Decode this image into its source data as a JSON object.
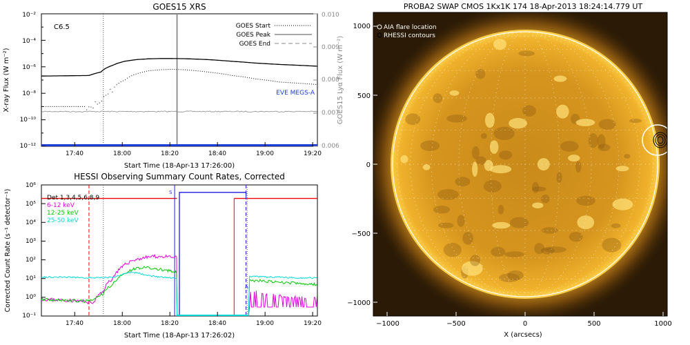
{
  "goes": {
    "title": "GOES15 XRS",
    "class_label": "C6.5",
    "xlabel": "Start Time (18-Apr-13 17:26:00)",
    "ylabel_left": "X-ray Flux (W m⁻²)",
    "ylabel_right": "GOES15 Lyα Flux (W m⁻²)",
    "legend": {
      "start": "GOES Start",
      "peak": "GOES Peak",
      "end": "GOES End"
    },
    "eve_label": "EVE MEGS-A",
    "yticks_left": [
      "10⁻²",
      "10⁻⁴",
      "10⁻⁶",
      "10⁻⁸",
      "10⁻¹⁰",
      "10⁻¹²"
    ],
    "yticks_right": [
      "0.010",
      "0.009",
      "0.008",
      "0.007",
      "0.006"
    ],
    "xticks": [
      "17:40",
      "18:00",
      "18:20",
      "18:40",
      "19:00",
      "19:20"
    ]
  },
  "hessi": {
    "title": "HESSI Observing Summary Count Rates, Corrected",
    "xlabel": "Start Time (18-Apr-13 17:26:02)",
    "ylabel": "Corrected Count Rate (s⁻¹ detector⁻¹)",
    "legend": [
      {
        "label": "Det 1,3,4,5,6,8,9",
        "color": "#000000"
      },
      {
        "label": "6-12 keV",
        "color": "#e000e0"
      },
      {
        "label": "12-25 keV",
        "color": "#00c800"
      },
      {
        "label": "25-50 keV",
        "color": "#00d8d8"
      }
    ],
    "yticks": [
      "10⁶",
      "10⁵",
      "10⁴",
      "10³",
      "10²",
      "10¹",
      "10⁰",
      "10⁻¹"
    ],
    "xticks": [
      "17:40",
      "18:00",
      "18:20",
      "18:40",
      "19:00",
      "19:20"
    ],
    "s_label": "S",
    "a_label": "A"
  },
  "swap": {
    "title": "PROBA2 SWAP CMOS 1Kx1K 174 18-Apr-2013 18:24:14.779 UT",
    "legend_aia": "AIA flare location",
    "legend_rhessi": "RHESSI contours",
    "xlabel": "X (arcsecs)",
    "xticks": [
      "−1000",
      "−500",
      "0",
      "500",
      "1000"
    ],
    "yticks": [
      "1000",
      "500",
      "0",
      "−500",
      "−1000"
    ]
  },
  "chart_data": [
    {
      "type": "line",
      "title": "GOES15 XRS",
      "xlabel": "Start Time (18-Apr-13 17:26:00)",
      "ylabel": "X-ray Flux (W m⁻²)",
      "ylabel_right": "GOES15 Lyα Flux (W m⁻²)",
      "ylog": true,
      "ylim": [
        1e-12,
        0.01
      ],
      "ylim_right": [
        0.006,
        0.01
      ],
      "xlim_minutes": [
        0,
        116
      ],
      "x_minutes_from_1726": [
        0,
        20,
        25,
        30,
        35,
        40,
        45,
        50,
        55,
        60,
        70,
        80,
        90,
        100,
        116
      ],
      "series": [
        {
          "name": "",
          "style": "solid black",
          "values": [
            2e-07,
            2.2e-07,
            4e-07,
            1.3e-06,
            2.6e-06,
            3.5e-06,
            4e-06,
            4.2e-06,
            4.2e-06,
            4.1e-06,
            3.5e-06,
            2.6e-06,
            1.9e-06,
            1.5e-06,
            1.1e-06
          ]
        },
        {
          "name": "",
          "style": "dotted black",
          "values": [
            1e-09,
            1e-09,
            2e-09,
            2e-08,
            1e-07,
            3e-07,
            5e-07,
            6e-07,
            6.5e-07,
            6e-07,
            4e-07,
            2.2e-07,
            1.2e-07,
            7e-08,
            4.5e-08
          ]
        }
      ],
      "events": {
        "start": "17:52",
        "peak": "18:23",
        "end": ""
      },
      "annotations": [
        "C6.5",
        "EVE MEGS-A"
      ]
    },
    {
      "type": "line",
      "title": "HESSI Observing Summary Count Rates, Corrected",
      "xlabel": "Start Time (18-Apr-13 17:26:02)",
      "ylabel": "Corrected Count Rate (s⁻¹ detector⁻¹)",
      "ylog": true,
      "ylim": [
        0.1,
        1000000.0
      ],
      "xlim_minutes": [
        0,
        116
      ],
      "x_minutes_from_1726": [
        0,
        10,
        18,
        22,
        26,
        30,
        34,
        38,
        42,
        46,
        50,
        54,
        57
      ],
      "series": [
        {
          "name": "6-12 keV",
          "color": "#e000e0",
          "values": [
            0.8,
            0.7,
            0.6,
            0.5,
            2,
            10,
            40,
            90,
            120,
            150,
            150,
            140,
            130
          ]
        },
        {
          "name": "12-25 keV",
          "color": "#00c800",
          "values": [
            0.8,
            0.7,
            0.6,
            0.7,
            1.5,
            5,
            15,
            30,
            40,
            35,
            30,
            25,
            20
          ]
        },
        {
          "name": "25-50 keV",
          "color": "#00d8d8",
          "values": [
            12,
            12,
            11,
            11,
            11,
            12,
            16,
            22,
            18,
            14,
            12,
            11,
            10
          ]
        }
      ],
      "after_gap": {
        "x_minutes_from_1726": [
          88,
          95,
          100,
          105,
          110,
          116
        ],
        "series": [
          {
            "name": "6-12 keV",
            "values": [
              2,
              1.5,
              1.2,
              1,
              1,
              1
            ]
          },
          {
            "name": "12-25 keV",
            "values": [
              8,
              7,
              6,
              6,
              5,
              5
            ]
          },
          {
            "name": "25-50 keV",
            "values": [
              13,
              12,
              12,
              11,
              11,
              11
            ]
          }
        ]
      },
      "markers": [
        "S",
        "A"
      ]
    }
  ]
}
